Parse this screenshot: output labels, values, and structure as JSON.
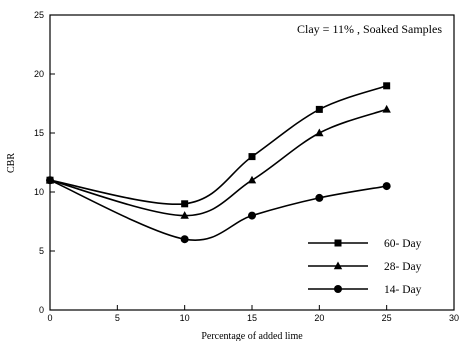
{
  "chart_data": {
    "type": "line",
    "annotation": "Clay = 11% ,   Soaked Samples",
    "xlabel": "Percentage of added lime",
    "ylabel": "CBR",
    "xlim": [
      0,
      30
    ],
    "ylim": [
      0,
      25
    ],
    "x_ticks": [
      0,
      5,
      10,
      15,
      20,
      25,
      30
    ],
    "y_ticks": [
      0,
      5,
      10,
      15,
      20,
      25
    ],
    "grid": false,
    "legend_position": "bottom-right",
    "line_color": "#000000",
    "series": [
      {
        "name": "60- Day",
        "marker": "square",
        "x": [
          0,
          10,
          15,
          20,
          25
        ],
        "y": [
          11,
          9,
          13,
          17,
          19
        ]
      },
      {
        "name": "28- Day",
        "marker": "triangle",
        "x": [
          0,
          10,
          15,
          20,
          25
        ],
        "y": [
          11,
          8,
          11,
          15,
          17
        ]
      },
      {
        "name": "14- Day",
        "marker": "circle",
        "x": [
          0,
          10,
          15,
          20,
          25
        ],
        "y": [
          11,
          6,
          8,
          9.5,
          10.5
        ]
      }
    ]
  }
}
